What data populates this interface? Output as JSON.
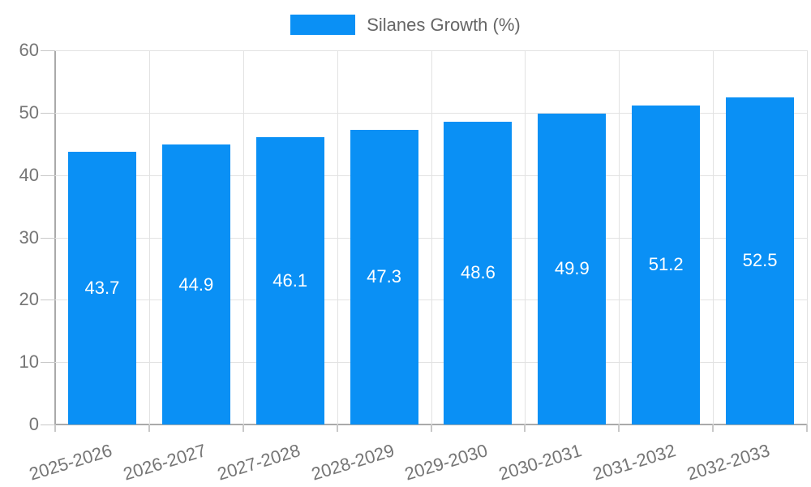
{
  "chart_data": {
    "type": "bar",
    "title": "Silanes Growth (%)",
    "legend": {
      "label": "Silanes Growth (%)",
      "position": "top-center"
    },
    "categories": [
      "2025-2026",
      "2026-2027",
      "2027-2028",
      "2028-2029",
      "2029-2030",
      "2030-2031",
      "2031-2032",
      "2032-2033"
    ],
    "series": [
      {
        "name": "Silanes Growth (%)",
        "values": [
          43.7,
          44.9,
          46.1,
          47.3,
          48.6,
          49.9,
          51.2,
          52.5
        ]
      }
    ],
    "xlabel": "",
    "ylabel": "",
    "ylim": [
      0,
      60
    ],
    "yticks": [
      0,
      10,
      20,
      30,
      40,
      50,
      60
    ],
    "grid": true,
    "value_labels": {
      "show": true,
      "position": "inside-center"
    },
    "colors": {
      "bar": "#0A90F5",
      "grid": "#E2E2E2",
      "axis": "#AAAAAA",
      "tick": "#C8C8C8",
      "text": "#757575",
      "legendText": "#666666",
      "valueLabel": "#FFFFFF",
      "bg": "#FFFFFF"
    }
  }
}
